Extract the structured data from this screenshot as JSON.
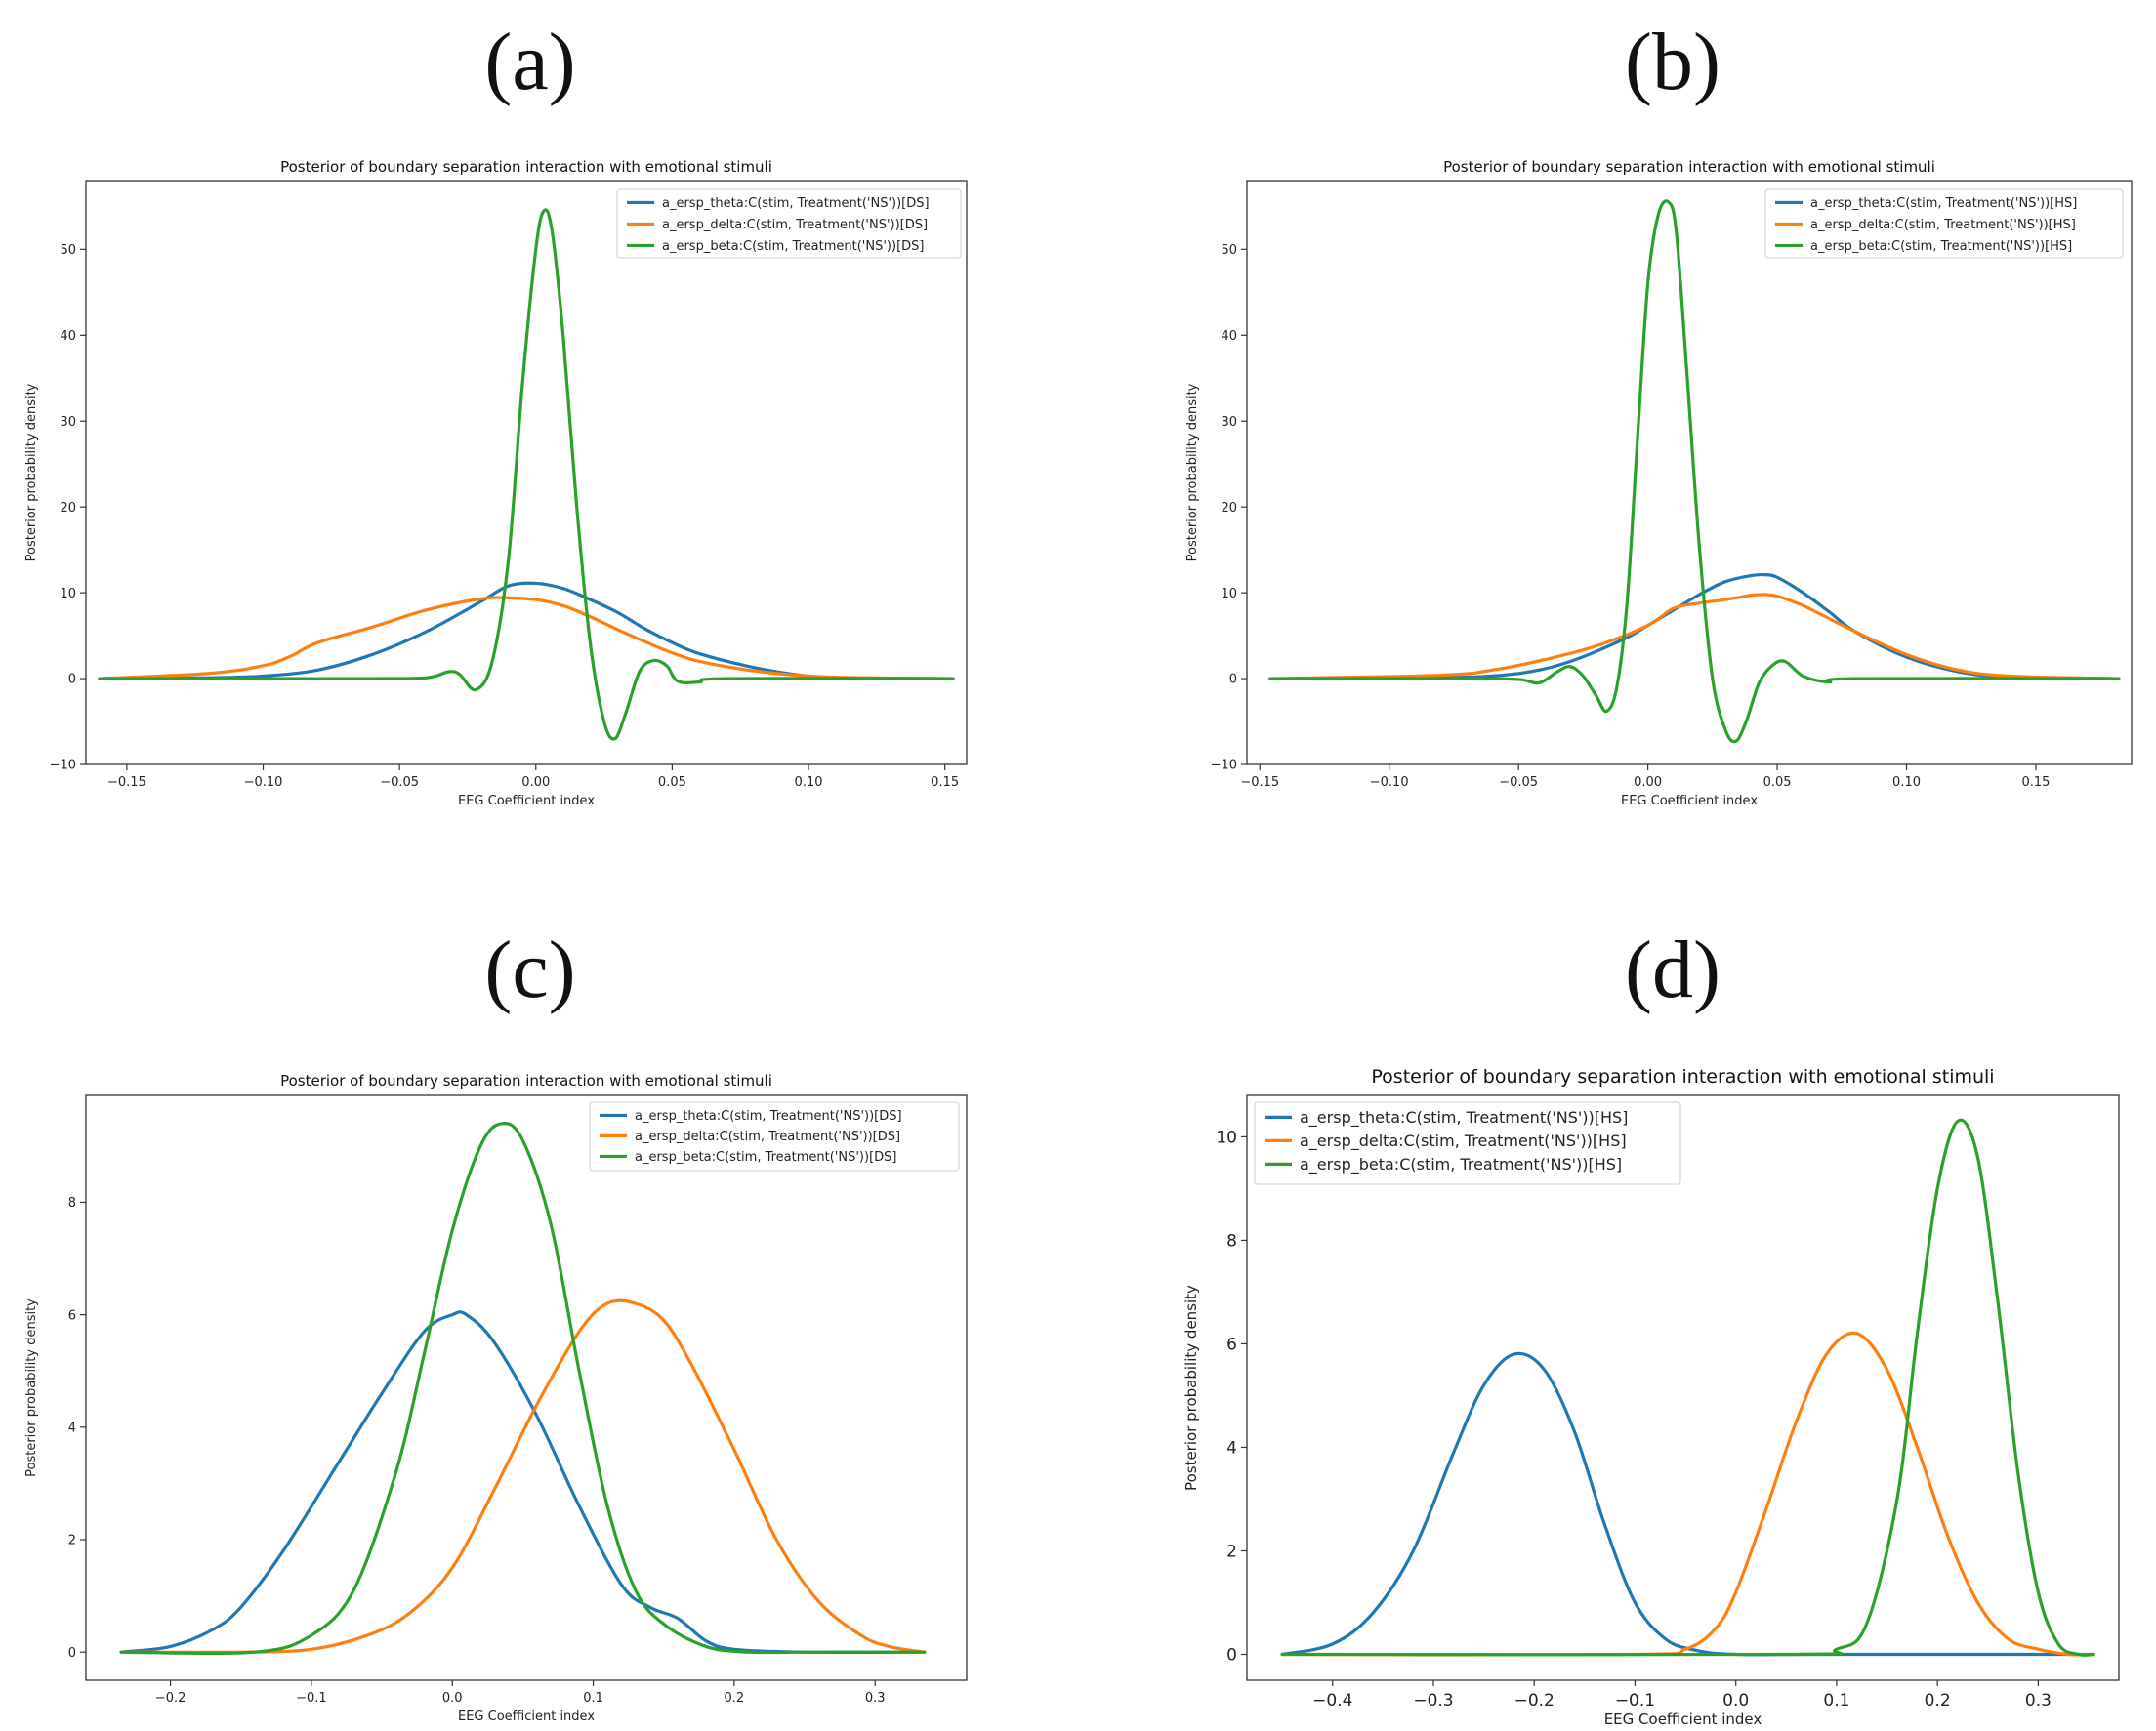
{
  "chart_data": [
    {
      "panel_label": "(a)",
      "type": "line",
      "title": "Posterior of boundary separation interaction with emotional stimuli",
      "xlabel": "EEG Coefficient index",
      "ylabel": "Posterior probability density",
      "xlim": [
        -0.165,
        0.158
      ],
      "ylim": [
        -10,
        58
      ],
      "xticks": [
        -0.15,
        -0.1,
        -0.05,
        0.0,
        0.05,
        0.1,
        0.15
      ],
      "xtick_labels": [
        "−0.15",
        "−0.10",
        "−0.05",
        "0.00",
        "0.05",
        "0.10",
        "0.15"
      ],
      "yticks": [
        -10,
        0,
        10,
        20,
        30,
        40,
        50
      ],
      "ytick_labels": [
        "−10",
        "0",
        "10",
        "20",
        "30",
        "40",
        "50"
      ],
      "legend": "top-right",
      "series": [
        {
          "name": "a_ersp_theta:C(stim, Treatment('NS'))[DS]",
          "color": "#1f77b4",
          "x": [
            -0.16,
            -0.12,
            -0.1,
            -0.08,
            -0.06,
            -0.04,
            -0.02,
            -0.01,
            0,
            0.01,
            0.02,
            0.03,
            0.04,
            0.05,
            0.06,
            0.08,
            0.1,
            0.12,
            0.153
          ],
          "y": [
            0,
            0.1,
            0.3,
            1,
            2.8,
            5.5,
            9,
            10.8,
            11.1,
            10.5,
            9.2,
            7.7,
            5.8,
            4.2,
            2.9,
            1.3,
            0.3,
            0.05,
            0
          ]
        },
        {
          "name": "a_ersp_delta:C(stim, Treatment('NS'))[DS]",
          "color": "#ff7f0e",
          "x": [
            -0.16,
            -0.12,
            -0.1,
            -0.09,
            -0.08,
            -0.06,
            -0.04,
            -0.02,
            -0.01,
            0,
            0.01,
            0.02,
            0.03,
            0.04,
            0.05,
            0.06,
            0.08,
            0.1,
            0.12,
            0.153
          ],
          "y": [
            0,
            0.6,
            1.5,
            2.6,
            4.2,
            6,
            8,
            9.3,
            9.4,
            9.2,
            8.5,
            7.2,
            5.7,
            4.3,
            3,
            2,
            0.9,
            0.3,
            0.1,
            0
          ]
        },
        {
          "name": "a_ersp_beta:C(stim, Treatment('NS'))[DS]",
          "color": "#2ca02c",
          "x": [
            -0.16,
            -0.1,
            -0.06,
            -0.04,
            -0.032,
            -0.028,
            -0.022,
            -0.016,
            -0.01,
            -0.005,
            0,
            0.003,
            0.006,
            0.01,
            0.015,
            0.02,
            0.025,
            0.029,
            0.033,
            0.038,
            0.043,
            0.048,
            0.052,
            0.06,
            0.07,
            0.153
          ],
          "y": [
            0,
            0,
            0,
            0.1,
            0.8,
            0.5,
            -1.3,
            2,
            14,
            34,
            50,
            54.5,
            52,
            40,
            20,
            4,
            -5,
            -7,
            -4,
            0.8,
            2.1,
            1.5,
            -0.3,
            -0.4,
            0,
            0
          ]
        }
      ]
    },
    {
      "panel_label": "(b)",
      "type": "line",
      "title": "Posterior of boundary separation interaction with emotional stimuli",
      "xlabel": "EEG Coefficient index",
      "ylabel": "Posterior probability density",
      "xlim": [
        -0.155,
        0.187
      ],
      "ylim": [
        -10,
        58
      ],
      "xticks": [
        -0.15,
        -0.1,
        -0.05,
        0.0,
        0.05,
        0.1,
        0.15
      ],
      "xtick_labels": [
        "−0.15",
        "−0.10",
        "−0.05",
        "0.00",
        "0.05",
        "0.10",
        "0.15"
      ],
      "yticks": [
        -10,
        0,
        10,
        20,
        30,
        40,
        50
      ],
      "ytick_labels": [
        "−10",
        "0",
        "10",
        "20",
        "30",
        "40",
        "50"
      ],
      "legend": "top-right",
      "series": [
        {
          "name": "a_ersp_theta:C(stim, Treatment('NS'))[HS]",
          "color": "#1f77b4",
          "x": [
            -0.146,
            -0.08,
            -0.05,
            -0.03,
            -0.01,
            0,
            0.01,
            0.02,
            0.03,
            0.04,
            0.045,
            0.05,
            0.06,
            0.07,
            0.08,
            0.1,
            0.12,
            0.14,
            0.182
          ],
          "y": [
            0,
            0.1,
            0.6,
            2,
            4.5,
            6.2,
            8,
            9.8,
            11.3,
            12,
            12.1,
            11.8,
            10,
            7.8,
            5.5,
            2.5,
            0.8,
            0.2,
            0
          ]
        },
        {
          "name": "a_ersp_delta:C(stim, Treatment('NS'))[HS]",
          "color": "#ff7f0e",
          "x": [
            -0.146,
            -0.08,
            -0.06,
            -0.04,
            -0.02,
            0,
            0.01,
            0.02,
            0.03,
            0.04,
            0.045,
            0.05,
            0.06,
            0.07,
            0.08,
            0.1,
            0.12,
            0.14,
            0.182
          ],
          "y": [
            0,
            0.4,
            1,
            2.2,
            3.8,
            6.2,
            8.2,
            8.8,
            9.2,
            9.7,
            9.8,
            9.6,
            8.5,
            7,
            5.5,
            2.8,
            1,
            0.3,
            0
          ]
        },
        {
          "name": "a_ersp_beta:C(stim, Treatment('NS'))[HS]",
          "color": "#2ca02c",
          "x": [
            -0.146,
            -0.07,
            -0.05,
            -0.042,
            -0.035,
            -0.03,
            -0.025,
            -0.02,
            -0.016,
            -0.012,
            -0.008,
            -0.004,
            0,
            0.004,
            0.008,
            0.011,
            0.015,
            0.02,
            0.025,
            0.03,
            0.034,
            0.038,
            0.043,
            0.048,
            0.053,
            0.06,
            0.07,
            0.08,
            0.182
          ],
          "y": [
            0,
            0,
            -0.1,
            -0.5,
            0.8,
            1.4,
            0.3,
            -2,
            -3.8,
            -1,
            9,
            28,
            46,
            54,
            55.5,
            52,
            36,
            15,
            0,
            -6,
            -7.3,
            -5,
            -0.5,
            1.5,
            2,
            0.3,
            -0.4,
            0,
            0
          ]
        }
      ]
    },
    {
      "panel_label": "(c)",
      "type": "line",
      "title": "Posterior of boundary separation interaction with emotional stimuli",
      "xlabel": "EEG Coefficient index",
      "ylabel": "Posterior probability density",
      "xlim": [
        -0.26,
        0.365
      ],
      "ylim": [
        -0.5,
        9.9
      ],
      "xticks": [
        -0.2,
        -0.1,
        0.0,
        0.1,
        0.2,
        0.3
      ],
      "xtick_labels": [
        "−0.2",
        "−0.1",
        "0.0",
        "0.1",
        "0.2",
        "0.3"
      ],
      "yticks": [
        0,
        2,
        4,
        6,
        8
      ],
      "ytick_labels": [
        "0",
        "2",
        "4",
        "6",
        "8"
      ],
      "legend": "top-right",
      "series": [
        {
          "name": "a_ersp_theta:C(stim, Treatment('NS'))[DS]",
          "color": "#1f77b4",
          "x": [
            -0.235,
            -0.2,
            -0.17,
            -0.15,
            -0.12,
            -0.08,
            -0.05,
            -0.02,
            0,
            0.01,
            0.03,
            0.06,
            0.09,
            0.12,
            0.14,
            0.16,
            0.18,
            0.2,
            0.25,
            0.335
          ],
          "y": [
            0,
            0.1,
            0.4,
            0.8,
            1.8,
            3.4,
            4.6,
            5.7,
            6,
            6,
            5.5,
            4.2,
            2.6,
            1.2,
            0.8,
            0.6,
            0.2,
            0.05,
            0,
            0
          ]
        },
        {
          "name": "a_ersp_delta:C(stim, Treatment('NS'))[DS]",
          "color": "#ff7f0e",
          "x": [
            -0.235,
            -0.15,
            -0.1,
            -0.06,
            -0.03,
            0,
            0.03,
            0.06,
            0.09,
            0.11,
            0.13,
            0.15,
            0.17,
            0.2,
            0.23,
            0.26,
            0.29,
            0.31,
            0.335
          ],
          "y": [
            0,
            0,
            0.05,
            0.3,
            0.7,
            1.5,
            2.9,
            4.4,
            5.7,
            6.2,
            6.2,
            5.9,
            5.1,
            3.6,
            2,
            0.9,
            0.3,
            0.1,
            0
          ]
        },
        {
          "name": "a_ersp_beta:C(stim, Treatment('NS'))[DS]",
          "color": "#2ca02c",
          "x": [
            -0.235,
            -0.14,
            -0.1,
            -0.07,
            -0.04,
            -0.02,
            0,
            0.02,
            0.035,
            0.05,
            0.07,
            0.09,
            0.11,
            0.13,
            0.15,
            0.18,
            0.21,
            0.25,
            0.335
          ],
          "y": [
            0,
            0,
            0.3,
            1.1,
            3.2,
            5.3,
            7.5,
            9,
            9.4,
            9.1,
            7.6,
            5,
            2.6,
            1.1,
            0.5,
            0.1,
            0,
            0,
            0
          ]
        }
      ]
    },
    {
      "panel_label": "(d)",
      "type": "line",
      "title": "Posterior of boundary separation interaction with emotional stimuli",
      "xlabel": "EEG Coefficient index",
      "ylabel": "Posterior probability density",
      "xlim": [
        -0.485,
        0.38
      ],
      "ylim": [
        -0.5,
        10.8
      ],
      "xticks": [
        -0.4,
        -0.3,
        -0.2,
        -0.1,
        0.0,
        0.1,
        0.2,
        0.3
      ],
      "xtick_labels": [
        "−0.4",
        "−0.3",
        "−0.2",
        "−0.1",
        "0.0",
        "0.1",
        "0.2",
        "0.3"
      ],
      "yticks": [
        0,
        2,
        4,
        6,
        8,
        10
      ],
      "ytick_labels": [
        "0",
        "2",
        "4",
        "6",
        "8",
        "10"
      ],
      "legend": "top-left",
      "series": [
        {
          "name": "a_ersp_theta:C(stim, Treatment('NS'))[HS]",
          "color": "#1f77b4",
          "x": [
            -0.45,
            -0.4,
            -0.36,
            -0.32,
            -0.28,
            -0.25,
            -0.22,
            -0.19,
            -0.16,
            -0.13,
            -0.1,
            -0.07,
            -0.04,
            0,
            0.1,
            0.355
          ],
          "y": [
            0,
            0.2,
            0.8,
            2,
            3.9,
            5.2,
            5.8,
            5.5,
            4.3,
            2.5,
            1,
            0.3,
            0.08,
            0,
            0,
            0
          ]
        },
        {
          "name": "a_ersp_delta:C(stim, Treatment('NS'))[HS]",
          "color": "#ff7f0e",
          "x": [
            -0.45,
            -0.1,
            -0.05,
            -0.02,
            0,
            0.03,
            0.06,
            0.09,
            0.12,
            0.15,
            0.18,
            0.21,
            0.24,
            0.27,
            0.3,
            0.33,
            0.355
          ],
          "y": [
            0,
            0,
            0.1,
            0.5,
            1.2,
            2.8,
            4.5,
            5.8,
            6.2,
            5.5,
            4,
            2.3,
            1,
            0.3,
            0.1,
            0,
            0
          ]
        },
        {
          "name": "a_ersp_beta:C(stim, Treatment('NS'))[HS]",
          "color": "#2ca02c",
          "x": [
            -0.45,
            0.05,
            0.1,
            0.13,
            0.16,
            0.18,
            0.2,
            0.22,
            0.24,
            0.26,
            0.28,
            0.3,
            0.32,
            0.34,
            0.355
          ],
          "y": [
            0,
            0,
            0.1,
            0.6,
            3,
            6.2,
            9,
            10.3,
            9.6,
            6.8,
            3.5,
            1.2,
            0.2,
            0,
            0
          ]
        }
      ]
    }
  ]
}
